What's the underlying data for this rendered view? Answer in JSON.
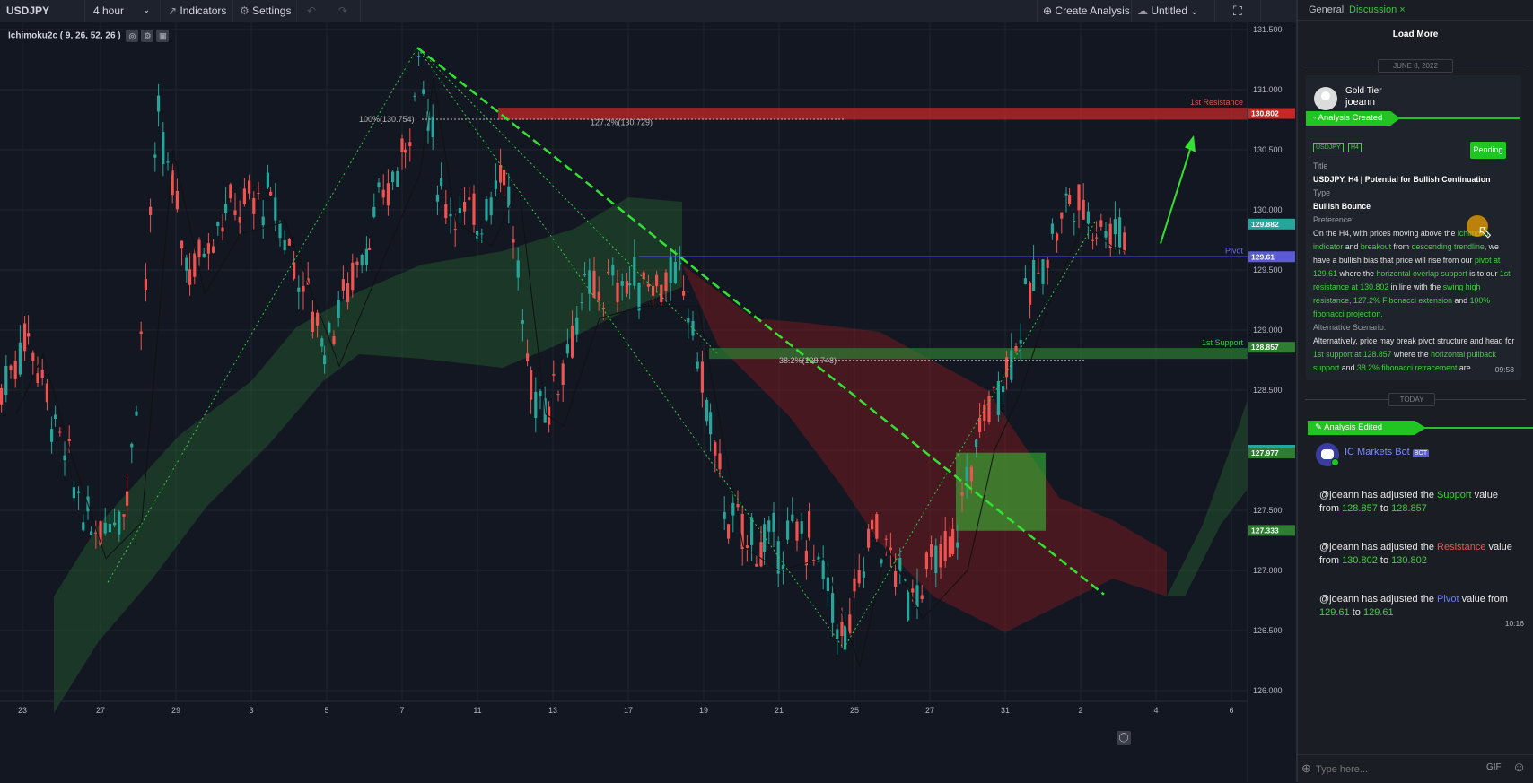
{
  "toolbar": {
    "symbol": "USDJPY",
    "interval": "4 hour",
    "indicators_label": "Indicators",
    "settings_label": "Settings",
    "create_analysis_label": "Create Analysis",
    "layout_name": "Untitled"
  },
  "chart": {
    "indicator_label": "Ichimoku2c ( 9, 26, 52, 26 )",
    "price_axis": [
      "131.500",
      "131.000",
      "130.500",
      "130.000",
      "129.500",
      "129.000",
      "128.500",
      "128.000",
      "127.500",
      "127.000",
      "126.500",
      "126.000"
    ],
    "date_axis": [
      "23",
      "27",
      "29",
      "3",
      "5",
      "7",
      "11",
      "13",
      "17",
      "19",
      "21",
      "25",
      "27",
      "31",
      "2",
      "4",
      "6"
    ],
    "price_tags": [
      {
        "label": "130.802",
        "color": "#c62828"
      },
      {
        "label": "129.882",
        "color": "#26a69a"
      },
      {
        "label": "129.61",
        "color": "#5b5bd6"
      },
      {
        "label": "128.857",
        "color": "#2e7d32"
      },
      {
        "label": "128.000",
        "color": "#26a69a"
      },
      {
        "label": "127.977",
        "color": "#2e7d32"
      },
      {
        "label": "127.333",
        "color": "#2e7d32"
      }
    ],
    "annotations": {
      "resistance": "1st Resistance",
      "pivot": "Pivot",
      "support": "1st Support",
      "fib_100": "100%(130.754)",
      "fib_127": "127.2%(130.729)",
      "fib_38": "38.2%(128.748)"
    },
    "colors": {
      "up": "#26a69a",
      "down": "#ef5350",
      "accent": "#21c521"
    }
  },
  "panel": {
    "tabs": {
      "general": "General",
      "discussion": "Discussion"
    },
    "load_more": "Load More",
    "date1": "JUNE 8, 2022",
    "post": {
      "tier": "Gold Tier",
      "user": "joeann",
      "banner": "Analysis Created",
      "tag1": "USDJPY",
      "tag2": "H4",
      "status": "Pending",
      "title_label": "Title",
      "title": "USDJPY, H4 | Potential for Bullish Continuation",
      "type_label": "Type",
      "type": "Bullish Bounce",
      "pref_label": "Preference:",
      "pref": {
        "t1": "On the H4, with prices moving above the ",
        "g1": "ichimoku indicator",
        "t2": " and ",
        "g2": "breakout",
        "t3": " from ",
        "g3": "descending trendline",
        "t4": ", we have a bullish bias that price will rise from our ",
        "g4": "pivot at 129.61",
        "t5": " where the ",
        "g5": "horizontal overlap support",
        "t6": " is to our ",
        "g6": "1st resistance at 130.802",
        "t7": " in line with the ",
        "g7": "swing high resistance, 127.2% Fibonacci extension",
        "t8": " and ",
        "g8": "100% fibonacci projection."
      },
      "alt_label": "Alternative Scenario:",
      "alt": {
        "t1": "Alternatively, price may break pivot structure and head for ",
        "g1": "1st support at 128.857",
        "t2": " where the ",
        "g2": "horizontal pullback support",
        "t3": " and ",
        "g3": "38.2% fibonacci retracement",
        "t4": " are."
      },
      "time": "09:53"
    },
    "date2": "TODAY",
    "edit_banner": "Analysis Edited",
    "bot_name": "IC Markets Bot",
    "bot_badge": "BOT",
    "messages": [
      {
        "user": "@joeann",
        "t1": " has adjusted the ",
        "field": "Support",
        "t2": " value from ",
        "from": "128.857",
        "t3": " to ",
        "to": "128.857"
      },
      {
        "user": "@joeann",
        "t1": " has adjusted the ",
        "field": "Resistance",
        "t2": " value from ",
        "from": "130.802",
        "t3": " to ",
        "to": "130.802"
      },
      {
        "user": "@joeann",
        "t1": " has adjusted the ",
        "field": "Pivot",
        "t2": " value from ",
        "from": "129.61",
        "t3": " to ",
        "to": "129.61"
      }
    ],
    "msg_time": "10:16",
    "input_placeholder": "Type here...",
    "gif_label": "GIF"
  }
}
